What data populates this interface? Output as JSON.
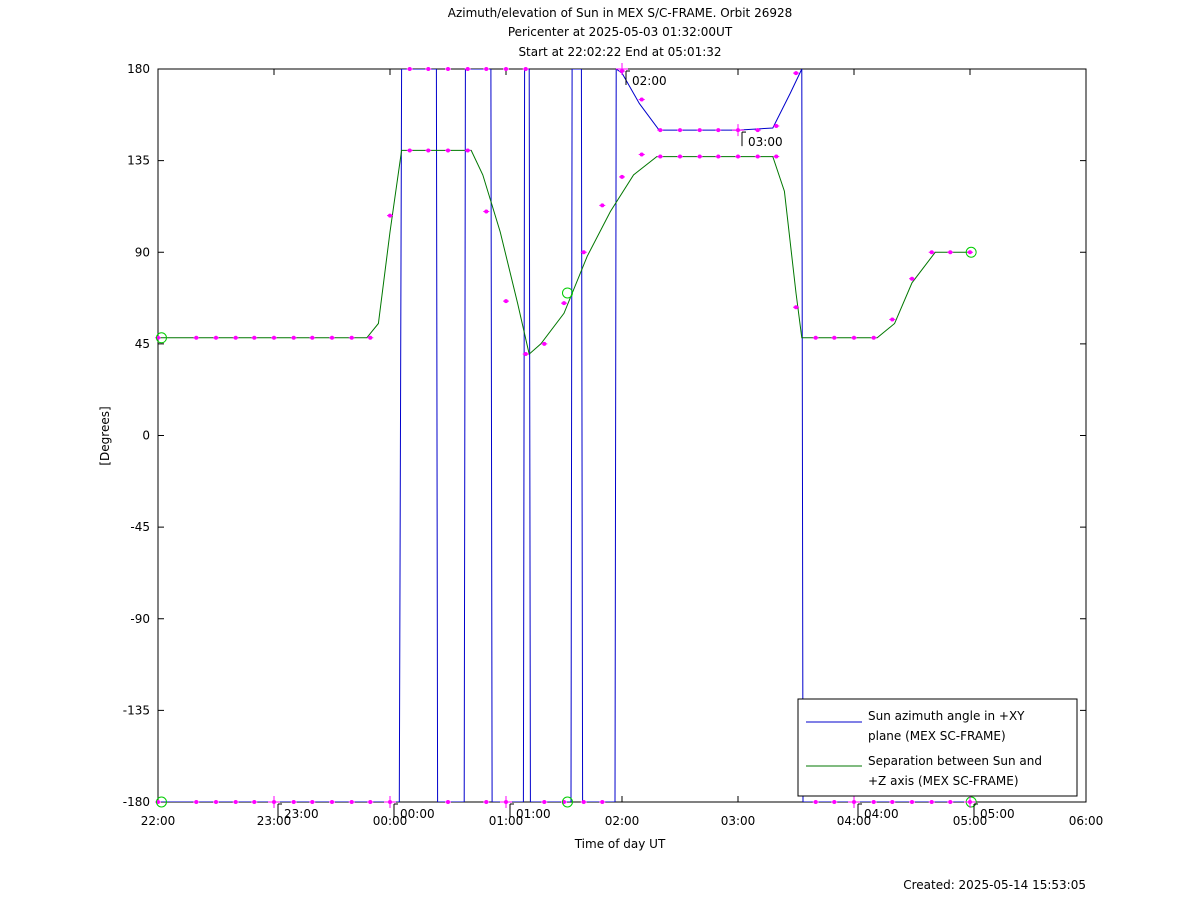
{
  "chart_data": {
    "type": "line",
    "title": "Azimuth/elevation of Sun in MEX S/C-FRAME.  Orbit 26928",
    "subtitle_1": "Pericenter at 2025-05-03 01:32:00UT",
    "subtitle_2": "Start at 22:02:22 End at 05:01:32",
    "xlabel": "Time of day UT",
    "ylabel": "[Degrees]",
    "xlim": [
      22.0,
      30.0
    ],
    "ylim": [
      -180,
      180
    ],
    "grid": false,
    "legend_position": "bottom-right",
    "x_ticks": [
      {
        "x": 22,
        "label": "22:00"
      },
      {
        "x": 23,
        "label": "23:00"
      },
      {
        "x": 24,
        "label": "00:00"
      },
      {
        "x": 25,
        "label": "01:00"
      },
      {
        "x": 26,
        "label": "02:00"
      },
      {
        "x": 27,
        "label": "03:00"
      },
      {
        "x": 28,
        "label": "04:00"
      },
      {
        "x": 29,
        "label": "05:00"
      },
      {
        "x": 30,
        "label": "06:00"
      }
    ],
    "y_ticks": [
      {
        "y": 180,
        "label": "180"
      },
      {
        "y": 135,
        "label": "135"
      },
      {
        "y": 90,
        "label": "90"
      },
      {
        "y": 45,
        "label": "45"
      },
      {
        "y": 0,
        "label": "0"
      },
      {
        "y": -45,
        "label": "-45"
      },
      {
        "y": -90,
        "label": "-90"
      },
      {
        "y": -135,
        "label": "-135"
      },
      {
        "y": -180,
        "label": "-180"
      }
    ],
    "series": [
      {
        "name": "Sun azimuth angle in +XY plane (MEX SC-FRAME)",
        "name_line1": "Sun azimuth angle in +XY",
        "name_line2": "plane (MEX SC-FRAME)",
        "color": "#0000cc",
        "points": [
          [
            22.0,
            -180
          ],
          [
            23.0,
            -180
          ],
          [
            24.08,
            -180
          ],
          [
            24.1,
            180
          ],
          [
            24.4,
            180
          ],
          [
            24.41,
            -180
          ],
          [
            24.64,
            -180
          ],
          [
            24.65,
            180
          ],
          [
            24.87,
            180
          ],
          [
            24.88,
            -180
          ],
          [
            25.15,
            -180
          ],
          [
            25.16,
            180
          ],
          [
            25.2,
            180
          ],
          [
            25.21,
            -180
          ],
          [
            25.56,
            -180
          ],
          [
            25.57,
            180
          ],
          [
            25.65,
            180
          ],
          [
            25.66,
            -180
          ],
          [
            25.94,
            -180
          ],
          [
            25.95,
            180
          ],
          [
            26.0,
            178
          ],
          [
            26.15,
            163
          ],
          [
            26.32,
            150
          ],
          [
            26.6,
            150
          ],
          [
            27.0,
            150
          ],
          [
            27.3,
            151
          ],
          [
            27.45,
            168
          ],
          [
            27.55,
            180
          ],
          [
            27.56,
            -180
          ],
          [
            28.0,
            -180
          ],
          [
            29.0,
            -180
          ]
        ]
      },
      {
        "name": "Separation between Sun and +Z axis (MEX SC-FRAME)",
        "name_line1": "Separation between Sun and",
        "name_line2": "+Z axis (MEX SC-FRAME)",
        "color": "#007700",
        "points": [
          [
            22.0,
            48
          ],
          [
            23.8,
            48
          ],
          [
            23.9,
            55
          ],
          [
            24.0,
            100
          ],
          [
            24.1,
            140
          ],
          [
            24.7,
            140
          ],
          [
            24.8,
            128
          ],
          [
            24.95,
            100
          ],
          [
            25.1,
            65
          ],
          [
            25.2,
            40
          ],
          [
            25.3,
            45
          ],
          [
            25.5,
            60
          ],
          [
            25.7,
            88
          ],
          [
            25.9,
            110
          ],
          [
            26.1,
            128
          ],
          [
            26.3,
            137
          ],
          [
            27.0,
            137
          ],
          [
            27.3,
            137
          ],
          [
            27.4,
            120
          ],
          [
            27.5,
            70
          ],
          [
            27.55,
            48
          ],
          [
            28.2,
            48
          ],
          [
            28.35,
            55
          ],
          [
            28.5,
            75
          ],
          [
            28.7,
            90
          ],
          [
            29.0,
            90
          ]
        ]
      }
    ],
    "markers": [
      [
        22.0,
        -180
      ],
      [
        22.33,
        -180
      ],
      [
        22.5,
        -180
      ],
      [
        22.67,
        -180
      ],
      [
        22.83,
        -180
      ],
      [
        23.0,
        -180
      ],
      [
        23.17,
        -180
      ],
      [
        23.33,
        -180
      ],
      [
        23.5,
        -180
      ],
      [
        23.67,
        -180
      ],
      [
        23.83,
        -180
      ],
      [
        24.0,
        -180
      ],
      [
        24.5,
        -180
      ],
      [
        24.83,
        -180
      ],
      [
        25.0,
        -180
      ],
      [
        25.33,
        -180
      ],
      [
        25.5,
        -180
      ],
      [
        25.67,
        -180
      ],
      [
        25.83,
        -180
      ],
      [
        27.67,
        -180
      ],
      [
        27.83,
        -180
      ],
      [
        28.0,
        -180
      ],
      [
        28.17,
        -180
      ],
      [
        28.33,
        -180
      ],
      [
        28.5,
        -180
      ],
      [
        28.67,
        -180
      ],
      [
        28.83,
        -180
      ],
      [
        29.0,
        -180
      ],
      [
        24.17,
        180
      ],
      [
        24.33,
        180
      ],
      [
        24.5,
        180
      ],
      [
        24.67,
        180
      ],
      [
        24.83,
        180
      ],
      [
        25.0,
        180
      ],
      [
        25.17,
        180
      ],
      [
        26.0,
        179
      ],
      [
        26.17,
        165
      ],
      [
        26.33,
        150
      ],
      [
        26.5,
        150
      ],
      [
        26.67,
        150
      ],
      [
        26.83,
        150
      ],
      [
        27.0,
        150
      ],
      [
        27.17,
        150
      ],
      [
        27.33,
        152
      ],
      [
        27.5,
        178
      ],
      [
        22.0,
        48
      ],
      [
        22.33,
        48
      ],
      [
        22.5,
        48
      ],
      [
        22.67,
        48
      ],
      [
        22.83,
        48
      ],
      [
        23.0,
        48
      ],
      [
        23.17,
        48
      ],
      [
        23.33,
        48
      ],
      [
        23.5,
        48
      ],
      [
        23.67,
        48
      ],
      [
        23.83,
        48
      ],
      [
        24.0,
        108
      ],
      [
        24.17,
        140
      ],
      [
        24.33,
        140
      ],
      [
        24.5,
        140
      ],
      [
        24.67,
        140
      ],
      [
        24.83,
        110
      ],
      [
        25.0,
        66
      ],
      [
        25.17,
        40
      ],
      [
        25.33,
        45
      ],
      [
        25.5,
        65
      ],
      [
        25.67,
        90
      ],
      [
        25.83,
        113
      ],
      [
        26.0,
        127
      ],
      [
        26.17,
        138
      ],
      [
        26.33,
        137
      ],
      [
        26.5,
        137
      ],
      [
        26.67,
        137
      ],
      [
        26.83,
        137
      ],
      [
        27.0,
        137
      ],
      [
        27.17,
        137
      ],
      [
        27.33,
        137
      ],
      [
        27.5,
        63
      ],
      [
        27.67,
        48
      ],
      [
        27.83,
        48
      ],
      [
        28.0,
        48
      ],
      [
        28.17,
        48
      ],
      [
        28.33,
        57
      ],
      [
        28.5,
        77
      ],
      [
        28.67,
        90
      ],
      [
        28.83,
        90
      ],
      [
        29.0,
        90
      ]
    ],
    "circles": [
      [
        22.03,
        48
      ],
      [
        22.03,
        -180
      ],
      [
        25.53,
        70
      ],
      [
        25.53,
        -180
      ],
      [
        29.01,
        90
      ],
      [
        29.01,
        -180
      ]
    ],
    "hour_annotations": [
      {
        "x": 23.0,
        "y": -180,
        "label": "23:00"
      },
      {
        "x": 24.0,
        "y": -180,
        "label": "00:00"
      },
      {
        "x": 25.0,
        "y": -180,
        "label": "01:00"
      },
      {
        "x": 26.0,
        "y": 180,
        "label": "02:00"
      },
      {
        "x": 27.0,
        "y": 150,
        "label": "03:00"
      },
      {
        "x": 28.0,
        "y": -180,
        "label": "04:00"
      },
      {
        "x": 29.0,
        "y": -180,
        "label": "05:00"
      }
    ],
    "created": "Created: 2025-05-14 15:53:05"
  }
}
